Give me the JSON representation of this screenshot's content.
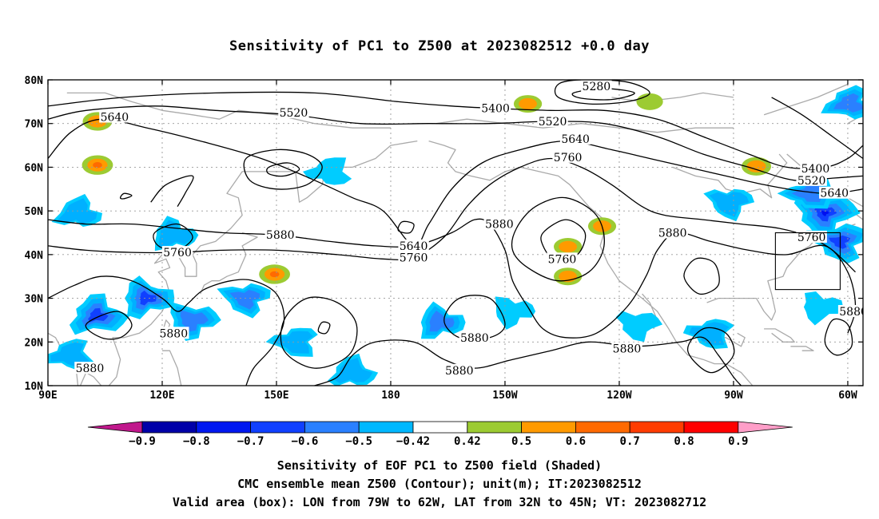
{
  "title": "Sensitivity of PC1 to Z500 at 2023082512 +0.0 day",
  "map": {
    "lon_range": [
      90,
      304
    ],
    "lat_range": [
      10,
      80
    ],
    "lon_ticks": [
      "90E",
      "120E",
      "150E",
      "180",
      "150W",
      "120W",
      "90W",
      "60W"
    ],
    "lat_ticks": [
      "10N",
      "20N",
      "30N",
      "40N",
      "50N",
      "60N",
      "70N",
      "80N"
    ],
    "grid": true,
    "valid_box": {
      "lon_from": 281,
      "lon_to": 298,
      "lat_from": 32,
      "lat_to": 45
    }
  },
  "contours": {
    "units": "m",
    "line_color": "#000000",
    "labels": [
      "5280",
      "5400",
      "5520",
      "5640",
      "5760",
      "5880"
    ],
    "label_instances": [
      {
        "text": "5640",
        "lon": 107.5,
        "lat": 71.5
      },
      {
        "text": "5520",
        "lon": 154.5,
        "lat": 72.5
      },
      {
        "text": "5400",
        "lon": 207.5,
        "lat": 73.5
      },
      {
        "text": "5280",
        "lon": 234,
        "lat": 78.5
      },
      {
        "text": "5520",
        "lon": 222.5,
        "lat": 70.5
      },
      {
        "text": "5640",
        "lon": 228.5,
        "lat": 66.5
      },
      {
        "text": "5760",
        "lon": 226.5,
        "lat": 62.3
      },
      {
        "text": "5400",
        "lon": 291.5,
        "lat": 59.7
      },
      {
        "text": "5520",
        "lon": 290.5,
        "lat": 57.0
      },
      {
        "text": "5640",
        "lon": 296.5,
        "lat": 54.1
      },
      {
        "text": "5880",
        "lon": 151,
        "lat": 44.5
      },
      {
        "text": "5760",
        "lon": 124,
        "lat": 40.5
      },
      {
        "text": "5640",
        "lon": 186,
        "lat": 42.0
      },
      {
        "text": "5760",
        "lon": 186,
        "lat": 39.3
      },
      {
        "text": "5880",
        "lon": 208.5,
        "lat": 47.0
      },
      {
        "text": "5760",
        "lon": 225,
        "lat": 39.0
      },
      {
        "text": "5880",
        "lon": 254,
        "lat": 45.0
      },
      {
        "text": "5760",
        "lon": 290.5,
        "lat": 44.0
      },
      {
        "text": "5880",
        "lon": 301.5,
        "lat": 27.0
      },
      {
        "text": "5880",
        "lon": 123,
        "lat": 22.0
      },
      {
        "text": "5880",
        "lon": 101,
        "lat": 14.0
      },
      {
        "text": "5880",
        "lon": 202,
        "lat": 21.0
      },
      {
        "text": "5880",
        "lon": 198,
        "lat": 13.5
      },
      {
        "text": "5880",
        "lon": 242,
        "lat": 18.5
      }
    ]
  },
  "sensitivity_patches": [
    {
      "lon": 103,
      "lat": 60.5,
      "value": 0.6
    },
    {
      "lon": 103,
      "lat": 70.5,
      "value": 0.55
    },
    {
      "lon": 216,
      "lat": 74.5,
      "value": 0.5
    },
    {
      "lon": 276,
      "lat": 60.2,
      "value": 0.55
    },
    {
      "lon": 149.5,
      "lat": 35.5,
      "value": 0.6
    },
    {
      "lon": 226.5,
      "lat": 41.8,
      "value": 0.5
    },
    {
      "lon": 226.5,
      "lat": 35.0,
      "value": 0.5
    },
    {
      "lon": 235.5,
      "lat": 46.5,
      "value": 0.5
    },
    {
      "lon": 248,
      "lat": 75,
      "value": 0.45
    },
    {
      "lon": 294,
      "lat": 49.5,
      "value": -0.8
    },
    {
      "lon": 298,
      "lat": 43,
      "value": -0.7
    },
    {
      "lon": 290,
      "lat": 54,
      "value": -0.55
    },
    {
      "lon": 300.5,
      "lat": 74.5,
      "value": -0.55
    },
    {
      "lon": 103,
      "lat": 26,
      "value": -0.7
    },
    {
      "lon": 116,
      "lat": 30,
      "value": -0.65
    },
    {
      "lon": 128,
      "lat": 25,
      "value": -0.6
    },
    {
      "lon": 142,
      "lat": 30,
      "value": -0.55
    },
    {
      "lon": 155,
      "lat": 20,
      "value": -0.5
    },
    {
      "lon": 96,
      "lat": 17,
      "value": -0.5
    },
    {
      "lon": 170,
      "lat": 13,
      "value": -0.5
    },
    {
      "lon": 193,
      "lat": 24.5,
      "value": -0.55
    },
    {
      "lon": 212,
      "lat": 27,
      "value": -0.45
    },
    {
      "lon": 269,
      "lat": 52,
      "value": -0.5
    },
    {
      "lon": 264,
      "lat": 22,
      "value": -0.5
    },
    {
      "lon": 164,
      "lat": 59,
      "value": -0.45
    },
    {
      "lon": 98,
      "lat": 49.5,
      "value": -0.5
    },
    {
      "lon": 123,
      "lat": 44.5,
      "value": -0.5
    },
    {
      "lon": 293,
      "lat": 28,
      "value": -0.45
    },
    {
      "lon": 245,
      "lat": 24,
      "value": -0.45
    }
  ],
  "colorbar": {
    "labels": [
      "−0.9",
      "−0.8",
      "−0.7",
      "−0.6",
      "−0.5",
      "−0.42",
      "0.42",
      "0.5",
      "0.6",
      "0.7",
      "0.8",
      "0.9"
    ],
    "colors": [
      "#b00080",
      "#0000a8",
      "#0010f0",
      "#1040ff",
      "#2a80ff",
      "#00b0ff",
      "#00ccff",
      "#ffffff",
      "#9ccb32",
      "#ff9a00",
      "#ff6a00",
      "#ff3c00",
      "#ff0000",
      "#ff8fc0"
    ],
    "low_extend_color": "#c0188c",
    "high_extend_color": "#ff9ec8"
  },
  "captions": {
    "line1": "Sensitivity of EOF PC1 to Z500 field (Shaded)",
    "line2": "CMC ensemble mean Z500 (Contour); unit(m); IT:2023082512",
    "line3": "Valid area (box): LON from 79W to 62W, LAT from 32N to 45N; VT: 2023082712"
  }
}
